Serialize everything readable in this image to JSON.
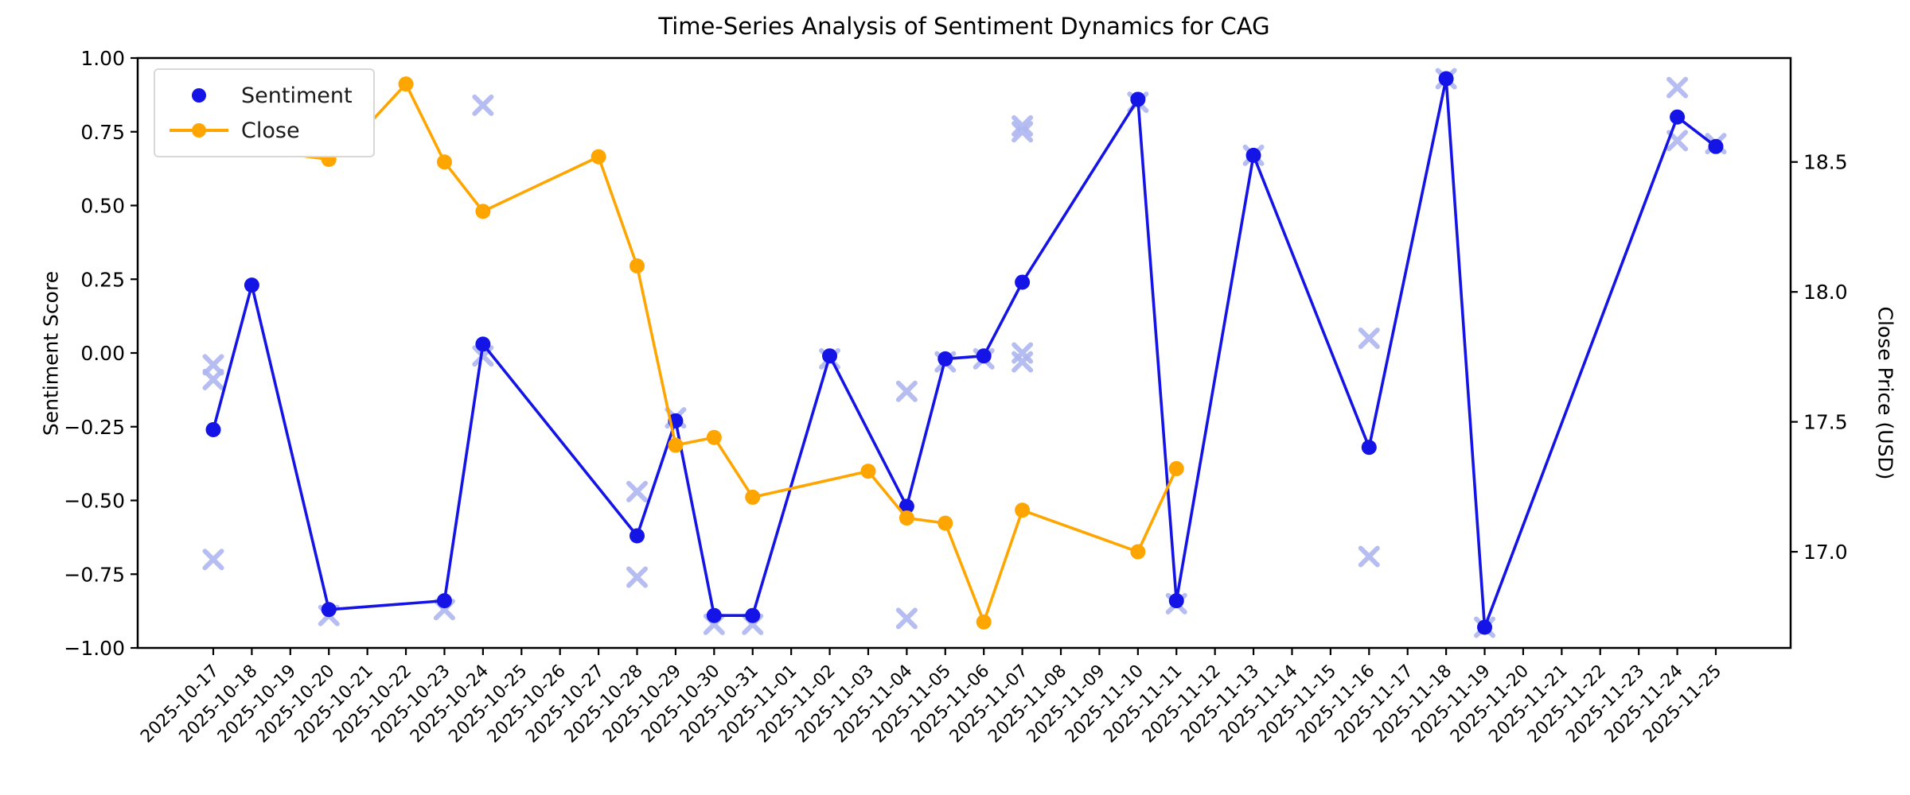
{
  "figure": {
    "title": "Time-Series Analysis of Sentiment Dynamics for CAG",
    "ylabel_left": "Sentiment Score",
    "ylabel_right": "Close Price (USD)"
  },
  "legend": {
    "items": [
      {
        "label": "Sentiment",
        "color": "#1414e6",
        "style": "dot"
      },
      {
        "label": "Close",
        "color": "#ffa500",
        "style": "line-dot"
      }
    ]
  },
  "colors": {
    "sentiment": "#1414e6",
    "close": "#ffa500",
    "scatter_x": "#aeb6f0",
    "axis": "#000000"
  },
  "chart_data": {
    "type": "line",
    "title": "Time-Series Analysis of Sentiment Dynamics for CAG",
    "xlabel": "",
    "ylabel": "Sentiment Score",
    "ylabel_right": "Close Price (USD)",
    "x_tick_labels": [
      "2025-10-17",
      "2025-10-18",
      "2025-10-19",
      "2025-10-20",
      "2025-10-21",
      "2025-10-22",
      "2025-10-23",
      "2025-10-24",
      "2025-10-25",
      "2025-10-26",
      "2025-10-27",
      "2025-10-28",
      "2025-10-29",
      "2025-10-30",
      "2025-10-31",
      "2025-11-01",
      "2025-11-02",
      "2025-11-03",
      "2025-11-04",
      "2025-11-05",
      "2025-11-06",
      "2025-11-07",
      "2025-11-08",
      "2025-11-09",
      "2025-11-10",
      "2025-11-11",
      "2025-11-12",
      "2025-11-13",
      "2025-11-14",
      "2025-11-15",
      "2025-11-16",
      "2025-11-17",
      "2025-11-18",
      "2025-11-19",
      "2025-11-20",
      "2025-11-21",
      "2025-11-22",
      "2025-11-23",
      "2025-11-24",
      "2025-11-25"
    ],
    "y_left_ticks": [
      "1.00",
      "0.75",
      "0.50",
      "0.25",
      "0.00",
      "−0.25",
      "−0.50",
      "−0.75",
      "−1.00"
    ],
    "y_left_tick_values": [
      1.0,
      0.75,
      0.5,
      0.25,
      0.0,
      -0.25,
      -0.5,
      -0.75,
      -1.0
    ],
    "y_right_ticks": [
      "18.5",
      "18.0",
      "17.5",
      "17.0"
    ],
    "y_right_tick_values": [
      18.5,
      18.0,
      17.5,
      17.0
    ],
    "ylim_left": [
      -1.0,
      1.0
    ],
    "ylim_right": [
      16.63,
      18.9
    ],
    "grid": false,
    "legend_position": "upper left",
    "series": [
      {
        "name": "Sentiment",
        "axis": "left",
        "marker": "circle",
        "points": [
          {
            "date": "2025-10-17",
            "value": -0.26
          },
          {
            "date": "2025-10-18",
            "value": 0.23
          },
          {
            "date": "2025-10-20",
            "value": -0.87
          },
          {
            "date": "2025-10-23",
            "value": -0.84
          },
          {
            "date": "2025-10-24",
            "value": 0.03
          },
          {
            "date": "2025-10-28",
            "value": -0.62
          },
          {
            "date": "2025-10-29",
            "value": -0.23
          },
          {
            "date": "2025-10-30",
            "value": -0.89
          },
          {
            "date": "2025-10-31",
            "value": -0.89
          },
          {
            "date": "2025-11-02",
            "value": -0.01
          },
          {
            "date": "2025-11-04",
            "value": -0.52
          },
          {
            "date": "2025-11-05",
            "value": -0.02
          },
          {
            "date": "2025-11-06",
            "value": -0.01
          },
          {
            "date": "2025-11-07",
            "value": 0.24
          },
          {
            "date": "2025-11-10",
            "value": 0.86
          },
          {
            "date": "2025-11-11",
            "value": -0.84
          },
          {
            "date": "2025-11-13",
            "value": 0.67
          },
          {
            "date": "2025-11-16",
            "value": -0.32
          },
          {
            "date": "2025-11-18",
            "value": 0.93
          },
          {
            "date": "2025-11-19",
            "value": -0.93
          },
          {
            "date": "2025-11-24",
            "value": 0.8
          },
          {
            "date": "2025-11-25",
            "value": 0.7
          }
        ]
      },
      {
        "name": "Close",
        "axis": "right",
        "marker": "circle",
        "points": [
          {
            "date": "2025-10-17",
            "value": 18.57
          },
          {
            "date": "2025-10-20",
            "value": 18.51
          },
          {
            "date": "2025-10-21",
            "value": 18.64
          },
          {
            "date": "2025-10-22",
            "value": 18.8
          },
          {
            "date": "2025-10-23",
            "value": 18.5
          },
          {
            "date": "2025-10-24",
            "value": 18.31
          },
          {
            "date": "2025-10-27",
            "value": 18.52
          },
          {
            "date": "2025-10-28",
            "value": 18.1
          },
          {
            "date": "2025-10-29",
            "value": 17.41
          },
          {
            "date": "2025-10-30",
            "value": 17.44
          },
          {
            "date": "2025-10-31",
            "value": 17.21
          },
          {
            "date": "2025-11-03",
            "value": 17.31
          },
          {
            "date": "2025-11-04",
            "value": 17.13
          },
          {
            "date": "2025-11-05",
            "value": 17.11
          },
          {
            "date": "2025-11-06",
            "value": 16.73
          },
          {
            "date": "2025-11-07",
            "value": 17.16
          },
          {
            "date": "2025-11-10",
            "value": 17.0
          },
          {
            "date": "2025-11-11",
            "value": 17.32
          }
        ]
      }
    ],
    "scatter": {
      "name": "individual-sentiment-x-markers",
      "axis": "left",
      "marker": "x",
      "points": [
        {
          "date": "2025-10-17",
          "value": -0.04
        },
        {
          "date": "2025-10-17",
          "value": -0.09
        },
        {
          "date": "2025-10-17",
          "value": -0.7
        },
        {
          "date": "2025-10-20",
          "value": -0.89
        },
        {
          "date": "2025-10-23",
          "value": -0.87
        },
        {
          "date": "2025-10-24",
          "value": 0.84
        },
        {
          "date": "2025-10-24",
          "value": -0.01
        },
        {
          "date": "2025-10-28",
          "value": -0.47
        },
        {
          "date": "2025-10-28",
          "value": -0.76
        },
        {
          "date": "2025-10-29",
          "value": -0.22
        },
        {
          "date": "2025-10-30",
          "value": -0.92
        },
        {
          "date": "2025-10-31",
          "value": -0.92
        },
        {
          "date": "2025-11-02",
          "value": -0.02
        },
        {
          "date": "2025-11-04",
          "value": -0.13
        },
        {
          "date": "2025-11-04",
          "value": -0.9
        },
        {
          "date": "2025-11-05",
          "value": -0.03
        },
        {
          "date": "2025-11-06",
          "value": -0.02
        },
        {
          "date": "2025-11-07",
          "value": 0.77
        },
        {
          "date": "2025-11-07",
          "value": 0.75
        },
        {
          "date": "2025-11-07",
          "value": 0.0
        },
        {
          "date": "2025-11-07",
          "value": -0.03
        },
        {
          "date": "2025-11-10",
          "value": 0.85
        },
        {
          "date": "2025-11-11",
          "value": -0.85
        },
        {
          "date": "2025-11-13",
          "value": 0.67
        },
        {
          "date": "2025-11-16",
          "value": 0.05
        },
        {
          "date": "2025-11-16",
          "value": -0.69
        },
        {
          "date": "2025-11-18",
          "value": 0.93
        },
        {
          "date": "2025-11-19",
          "value": -0.93
        },
        {
          "date": "2025-11-24",
          "value": 0.9
        },
        {
          "date": "2025-11-24",
          "value": 0.72
        },
        {
          "date": "2025-11-25",
          "value": 0.71
        }
      ]
    }
  }
}
